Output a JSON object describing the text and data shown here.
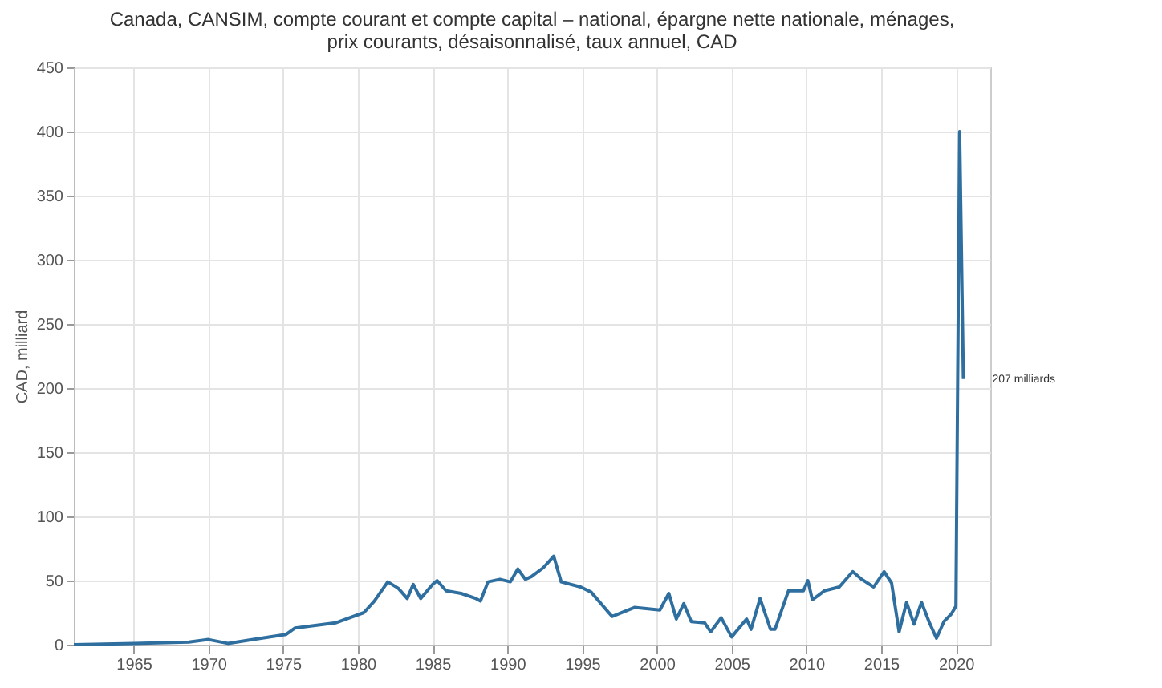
{
  "chart_data": {
    "type": "line",
    "title": "Canada, CANSIM, compte courant et compte capital – national, épargne nette nationale, ménages, prix courants, désaisonnalisé, taux annuel, CAD",
    "ylabel": "CAD, milliard",
    "x": [
      1961,
      1965,
      1968.7,
      1970,
      1971.3,
      1973,
      1975.2,
      1975.8,
      1978.5,
      1980.4,
      1981.1,
      1982,
      1982.7,
      1983.3,
      1983.7,
      1984.2,
      1985,
      1985.3,
      1985.9,
      1986.9,
      1987.9,
      1988.2,
      1988.7,
      1989.5,
      1990.2,
      1990.7,
      1991.2,
      1991.6,
      1992.4,
      1993.1,
      1993.6,
      1994.9,
      1995.6,
      1997.0,
      1998.5,
      2000.2,
      2000.8,
      2001.3,
      2001.8,
      2002.3,
      2003.2,
      2003.6,
      2004.3,
      2005.0,
      2006.0,
      2006.3,
      2006.9,
      2007.6,
      2007.9,
      2008.8,
      2009.8,
      2010.1,
      2010.4,
      2011.2,
      2012.2,
      2013.1,
      2013.7,
      2014.5,
      2015.2,
      2015.7,
      2016.2,
      2016.7,
      2017.2,
      2017.7,
      2018.2,
      2018.7,
      2019.2,
      2019.7,
      2020.0,
      2020.25,
      2020.5
    ],
    "series": [
      {
        "color": "#2f6f9f",
        "values": [
          0,
          1,
          2,
          4,
          1,
          4,
          8,
          13,
          17,
          25,
          34,
          49,
          44,
          36,
          47,
          36,
          47,
          50,
          42,
          40,
          36,
          34,
          49,
          51,
          49,
          59,
          51,
          53,
          60,
          69,
          49,
          45,
          41,
          22,
          29,
          27,
          40,
          20,
          32,
          18,
          17,
          10,
          21,
          6,
          20,
          12,
          36,
          12,
          12,
          42,
          42,
          50,
          35,
          42,
          45,
          57,
          51,
          45,
          57,
          48,
          10,
          33,
          16,
          33,
          18,
          5,
          18,
          24,
          30,
          400,
          207
        ]
      }
    ],
    "annotations": [
      {
        "text": "207 milliards",
        "x": 2020.5,
        "y": 207
      }
    ],
    "xlim": [
      1961,
      2022.3
    ],
    "xticks": [
      1965,
      1970,
      1975,
      1980,
      1985,
      1990,
      1995,
      2000,
      2005,
      2010,
      2015,
      2020
    ],
    "ylim": [
      0,
      450
    ],
    "yticks": [
      0,
      50,
      100,
      150,
      200,
      250,
      300,
      350,
      400,
      450
    ],
    "grid": true,
    "line_style": "solid",
    "marker": "none"
  }
}
